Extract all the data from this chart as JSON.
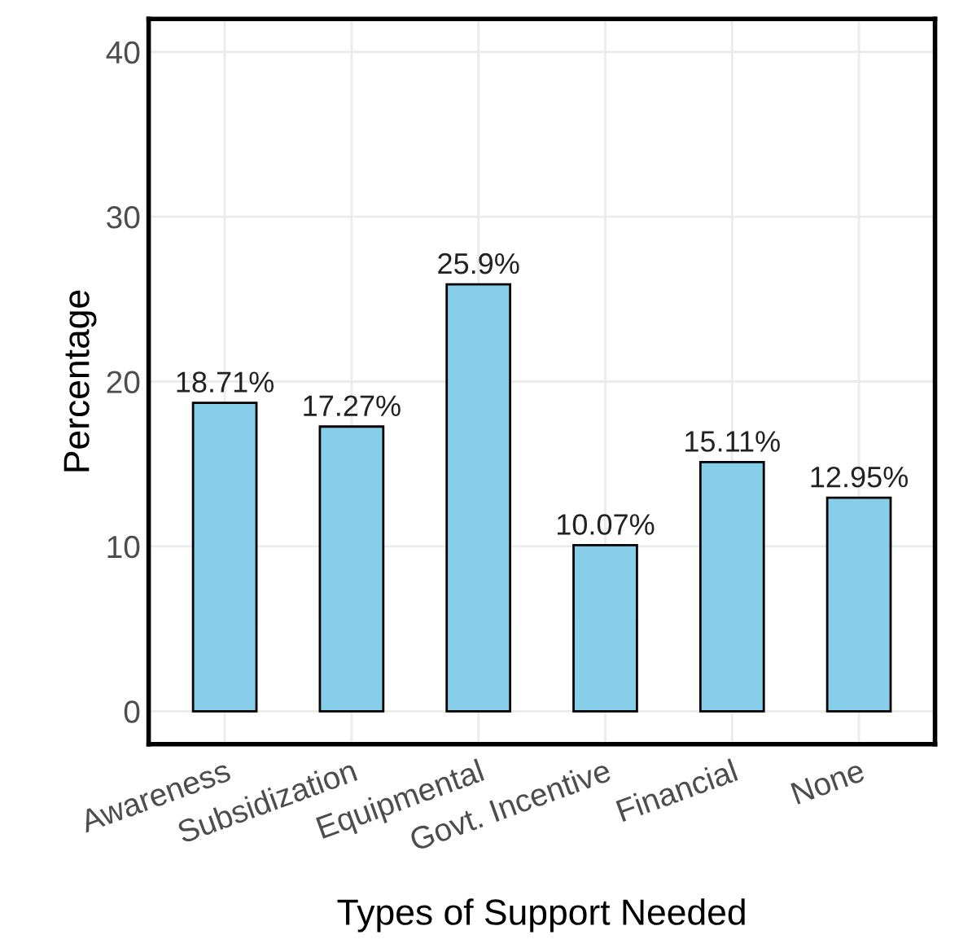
{
  "chart_data": {
    "type": "bar",
    "xlabel": "Types of Support Needed",
    "ylabel": "Percentage",
    "categories": [
      "Awareness",
      "Subsidization",
      "Equipmental",
      "Govt. Incentive",
      "Financial",
      "None"
    ],
    "values": [
      18.71,
      17.27,
      25.9,
      10.07,
      15.11,
      12.95
    ],
    "value_labels": [
      "18.71%",
      "17.27%",
      "25.9%",
      "10.07%",
      "15.11%",
      "12.95%"
    ],
    "color": "#87ceeb",
    "ylim": [
      -2,
      42
    ],
    "yticks": [
      0,
      10,
      20,
      30,
      40
    ],
    "grid": true
  }
}
